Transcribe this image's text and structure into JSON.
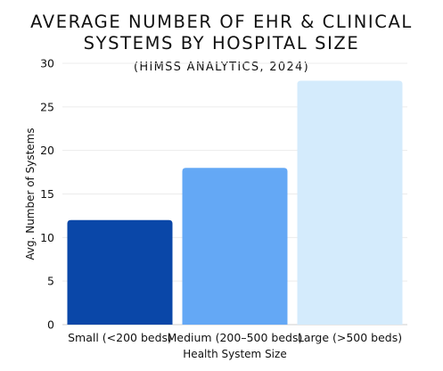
{
  "chart_data": {
    "type": "bar",
    "title_lines": [
      "AVERAGE NUMBER OF EHR & CLINICAL",
      "SYSTEMS BY HOSPITAL SIZE"
    ],
    "subtitle": "(HIMSS ANALYTICS, 2024)",
    "categories": [
      "Small (<200 beds)",
      "Medium (200–500 beds)",
      "Large (>500 beds)"
    ],
    "values": [
      12,
      18,
      28
    ],
    "bar_colors": [
      "#0a47a8",
      "#64a8f5",
      "#d4ebfc"
    ],
    "xlabel": "Health System Size",
    "ylabel": "Avg. Number of Systems",
    "ylim": [
      0,
      30
    ],
    "yticks": [
      0,
      5,
      10,
      15,
      20,
      25,
      30
    ],
    "grid": true,
    "legend": "none"
  }
}
